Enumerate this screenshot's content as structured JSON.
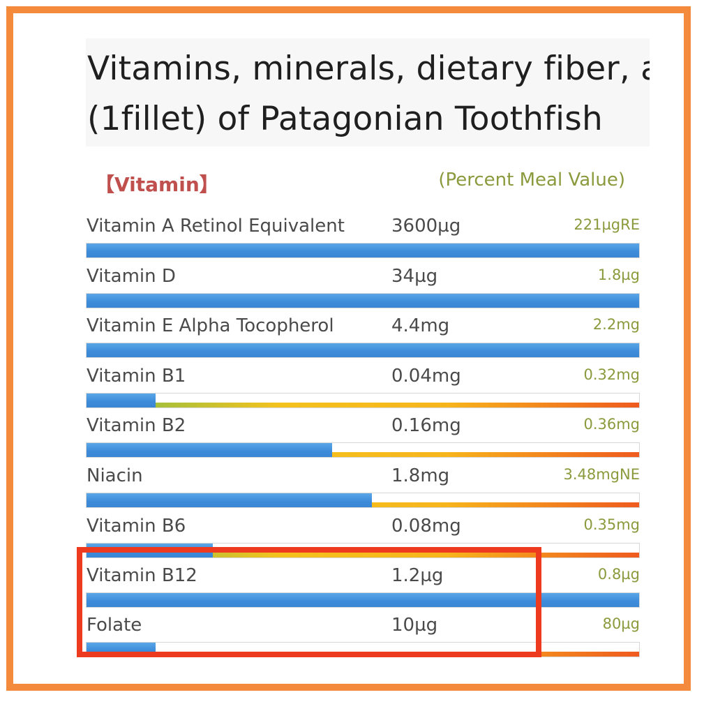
{
  "title": {
    "line1": "Vitamins, minerals, dietary fiber, ar",
    "line2": "(1fillet) of Patagonian Toothfish"
  },
  "section": {
    "label": "【Vitamin】",
    "meal_value_header": "(Percent Meal Value)"
  },
  "colors": {
    "frame": "#f48a3b",
    "bar_fill": "#3c8bd9",
    "highlight": "#ee3a1f",
    "meal_value_text": "#8a9a3c",
    "section_label": "#c0504d"
  },
  "rows": [
    {
      "name": "Vitamin A Retinol Equivalent",
      "amount": "3600µg",
      "meal_value": "221µgRE",
      "fill_percent": 100
    },
    {
      "name": "Vitamin D",
      "amount": "34µg",
      "meal_value": "1.8µg",
      "fill_percent": 100
    },
    {
      "name": "Vitamin E Alpha Tocopherol",
      "amount": "4.4mg",
      "meal_value": "2.2mg",
      "fill_percent": 100
    },
    {
      "name": "Vitamin B1",
      "amount": "0.04mg",
      "meal_value": "0.32mg",
      "fill_percent": 12.5
    },
    {
      "name": "Vitamin B2",
      "amount": "0.16mg",
      "meal_value": "0.36mg",
      "fill_percent": 44.4
    },
    {
      "name": "Niacin",
      "amount": "1.8mg",
      "meal_value": "3.48mgNE",
      "fill_percent": 51.7
    },
    {
      "name": "Vitamin B6",
      "amount": "0.08mg",
      "meal_value": "0.35mg",
      "fill_percent": 22.9
    },
    {
      "name": "Vitamin B12",
      "amount": "1.2µg",
      "meal_value": "0.8µg",
      "fill_percent": 100
    },
    {
      "name": "Folate",
      "amount": "10µg",
      "meal_value": "80µg",
      "fill_percent": 12.5
    }
  ],
  "highlighted_rows": [
    "Vitamin B12",
    "Folate"
  ]
}
